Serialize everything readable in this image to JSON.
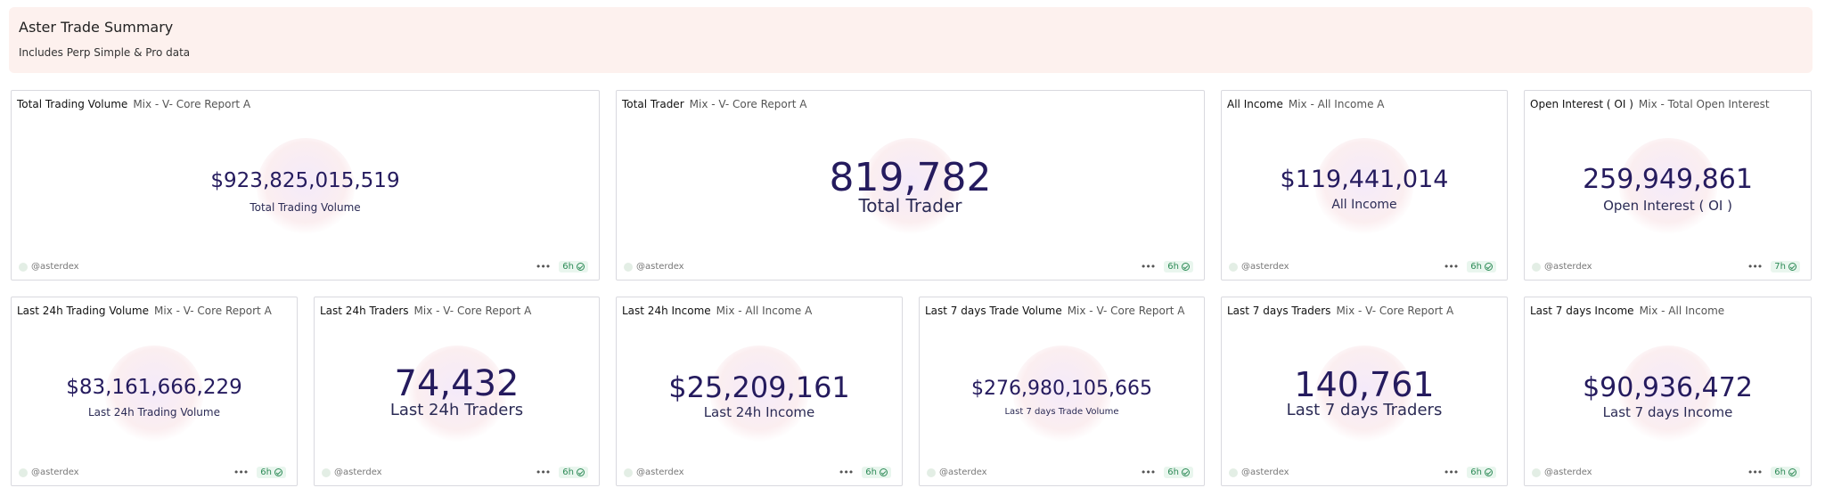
{
  "banner": {
    "title": "Aster Trade Summary",
    "subtitle": "Includes Perp Simple & Pro data"
  },
  "cards": [
    {
      "title": "Total Trading Volume",
      "query": "Mix - V- Core Report A",
      "value": "$923,825,015,519",
      "label": "Total Trading Volume",
      "author": "@asterdex",
      "freshness": "6h"
    },
    {
      "title": "Total Trader",
      "query": "Mix - V- Core Report A",
      "value": "819,782",
      "label": "Total Trader",
      "author": "@asterdex",
      "freshness": "6h"
    },
    {
      "title": "All Income",
      "query": "Mix - All Income A",
      "value": "$119,441,014",
      "label": "All Income",
      "author": "@asterdex",
      "freshness": "6h"
    },
    {
      "title": "Open Interest ( OI )",
      "query": "Mix - Total Open Interest",
      "value": "259,949,861",
      "label": "Open Interest ( OI )",
      "author": "@asterdex",
      "freshness": "7h"
    },
    {
      "title": "Last 24h Trading Volume",
      "query": "Mix - V- Core Report A",
      "value": "$83,161,666,229",
      "label": "Last 24h Trading Volume",
      "author": "@asterdex",
      "freshness": "6h"
    },
    {
      "title": "Last 24h Traders",
      "query": "Mix - V- Core Report A",
      "value": "74,432",
      "label": "Last 24h Traders",
      "author": "@asterdex",
      "freshness": "6h"
    },
    {
      "title": "Last 24h Income",
      "query": "Mix - All Income A",
      "value": "$25,209,161",
      "label": "Last 24h Income",
      "author": "@asterdex",
      "freshness": "6h"
    },
    {
      "title": "Last 7 days Trade Volume",
      "query": "Mix - V- Core Report A",
      "value": "$276,980,105,665",
      "label": "Last 7 days Trade Volume",
      "author": "@asterdex",
      "freshness": "6h"
    },
    {
      "title": "Last 7 days Traders",
      "query": "Mix - V- Core Report A",
      "value": "140,761",
      "label": "Last 7 days Traders",
      "author": "@asterdex",
      "freshness": "6h"
    },
    {
      "title": "Last 7 days Income",
      "query": "Mix - All Income",
      "value": "$90,936,472",
      "label": "Last 7 days Income",
      "author": "@asterdex",
      "freshness": "6h"
    }
  ]
}
